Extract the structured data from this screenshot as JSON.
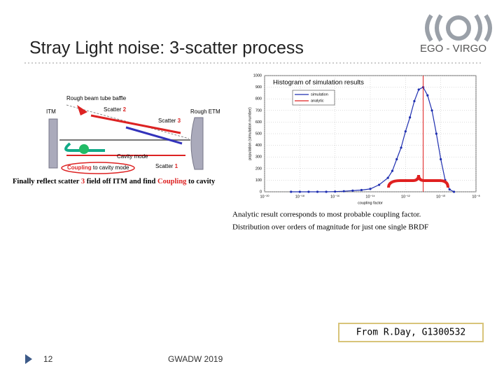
{
  "header": {
    "title": "Stray Light noise: 3-scatter process",
    "org": "EGO - VIRGO"
  },
  "diagram": {
    "labels": [
      "Rough beam tube baffle",
      "ITM",
      "Rough ETM",
      "Cavity mode",
      "Scatter",
      "2",
      "Scatter",
      "3",
      "Scatter",
      "1",
      "Coupling",
      "to cavity mode"
    ],
    "caption": [
      "Finally reflect scatter ",
      "3",
      " field off ITM and find ",
      "Coupling",
      " to cavity"
    ]
  },
  "chart_data": {
    "type": "line",
    "title": "Histogram of simulation results",
    "x_label": "coupling factor",
    "y_label": "population (simulation number)",
    "xscale": "log",
    "grid": true,
    "xlim": [
      1e-20,
      1e-08
    ],
    "xticks": [
      {
        "value": 1e-20,
        "label": "10⁻²⁰"
      },
      {
        "value": 1e-18,
        "label": "10⁻¹⁸"
      },
      {
        "value": 1e-16,
        "label": "10⁻¹⁶"
      },
      {
        "value": 1e-14,
        "label": "10⁻¹⁴"
      },
      {
        "value": 1e-12,
        "label": "10⁻¹²"
      },
      {
        "value": 1e-10,
        "label": "10⁻¹⁰"
      },
      {
        "value": 1e-08,
        "label": "10⁻⁸"
      }
    ],
    "ylim": [
      0,
      1000
    ],
    "yticks": [
      0,
      100,
      200,
      300,
      400,
      500,
      600,
      700,
      800,
      900,
      1000
    ],
    "series": [
      {
        "name": "simulation",
        "color": "#1f2fb0",
        "x": [
          3.162e-19,
          1e-18,
          3.162e-18,
          1e-17,
          3.162e-17,
          1e-16,
          3.162e-16,
          1e-15,
          3.162e-15,
          1e-14,
          3.162e-14,
          1e-13,
          1.778e-13,
          3.162e-13,
          5.623e-13,
          1e-12,
          1.778e-12,
          3.162e-12,
          5.623e-12,
          1e-11,
          1.778e-11,
          3.162e-11,
          5.623e-11,
          1e-10,
          1.778e-10,
          3.162e-10,
          5.623e-10
        ],
        "values": [
          0,
          0,
          0,
          0,
          0,
          2,
          5,
          10,
          15,
          25,
          60,
          120,
          180,
          280,
          380,
          520,
          640,
          780,
          880,
          900,
          830,
          700,
          500,
          280,
          100,
          20,
          0
        ]
      },
      {
        "name": "analytic",
        "color": "#e02020",
        "x": [
          1e-11,
          1e-11
        ],
        "values": [
          0,
          1000
        ]
      }
    ]
  },
  "notes": [
    "Analytic result corresponds to most probable coupling factor.",
    "Distribution over orders of magnitude for just one single BRDF"
  ],
  "source": "From R.Day, G1300532",
  "footer": {
    "page": "12",
    "event": "GWADW 2019"
  }
}
